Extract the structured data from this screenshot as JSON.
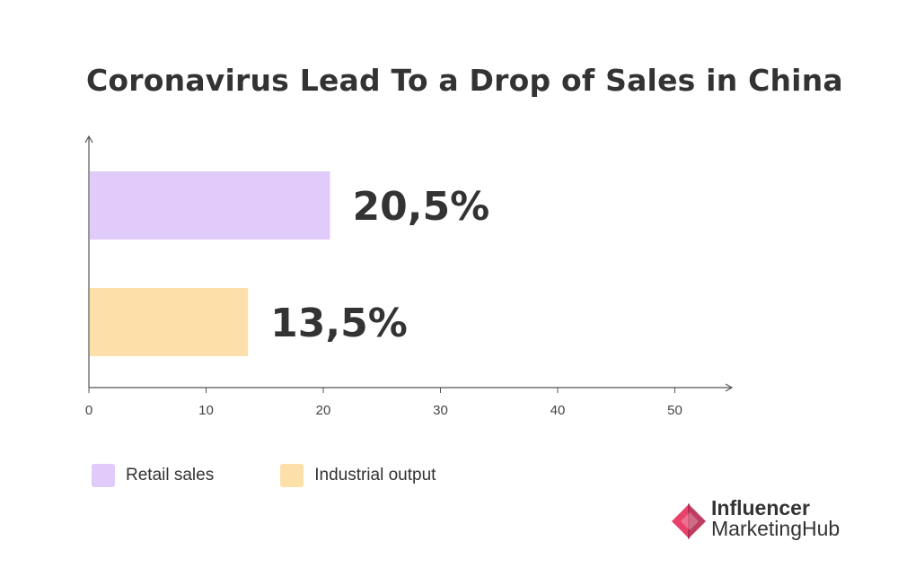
{
  "chart_data": {
    "type": "bar",
    "orientation": "horizontal",
    "title": "Coronavirus Lead To a Drop of Sales in China",
    "categories": [
      "Retail sales",
      "Industrial output"
    ],
    "values": [
      20.5,
      13.5
    ],
    "data_labels": [
      "20,5%",
      "13,5%"
    ],
    "xlim": [
      0,
      55
    ],
    "xticks": [
      0,
      10,
      20,
      30,
      40,
      50
    ],
    "xlabel": "",
    "ylabel": "",
    "grid": false,
    "legend_position": "bottom-left",
    "colors": [
      "#e0cbfb",
      "#fde0a9"
    ]
  },
  "legend": {
    "items": [
      {
        "label": "Retail sales",
        "color": "#e0cbfb"
      },
      {
        "label": "Industrial output",
        "color": "#fde0a9"
      }
    ]
  },
  "brand": {
    "line1": "Influencer",
    "line2": "MarketingHub",
    "color": "#e8426c",
    "icon": "influencer-marketing-hub-logo-icon"
  }
}
